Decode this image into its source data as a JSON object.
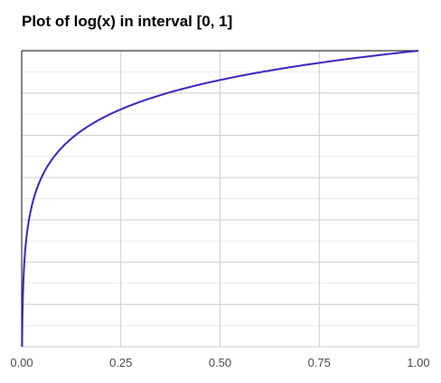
{
  "chart_data": {
    "type": "line",
    "title": "Plot of log(x) in interval [0, 1]",
    "xlabel": "",
    "ylabel": "",
    "xlim": [
      0,
      1
    ],
    "x_ticks": [
      "0.00",
      "0.25",
      "0.50",
      "0.75",
      "1.00"
    ],
    "y_ticks": [],
    "grid": true,
    "legend": "none",
    "series": [
      {
        "function": "log(x)",
        "color": "#3322bb",
        "x": [
          0.001,
          0.005,
          0.01,
          0.02,
          0.05,
          0.1,
          0.15,
          0.2,
          0.25,
          0.3,
          0.4,
          0.5,
          0.6,
          0.7,
          0.75,
          0.8,
          0.9,
          1.0
        ],
        "y": [
          -6.908,
          -5.298,
          -4.605,
          -3.912,
          -2.996,
          -2.303,
          -1.897,
          -1.609,
          -1.386,
          -1.204,
          -0.916,
          -0.693,
          -0.511,
          -0.357,
          -0.288,
          -0.223,
          -0.105,
          0.0
        ]
      }
    ]
  },
  "colors": {
    "axis": "#333333",
    "grid": "#cccccc",
    "minor_grid": "#ebebeb",
    "line": "#3322bb"
  }
}
